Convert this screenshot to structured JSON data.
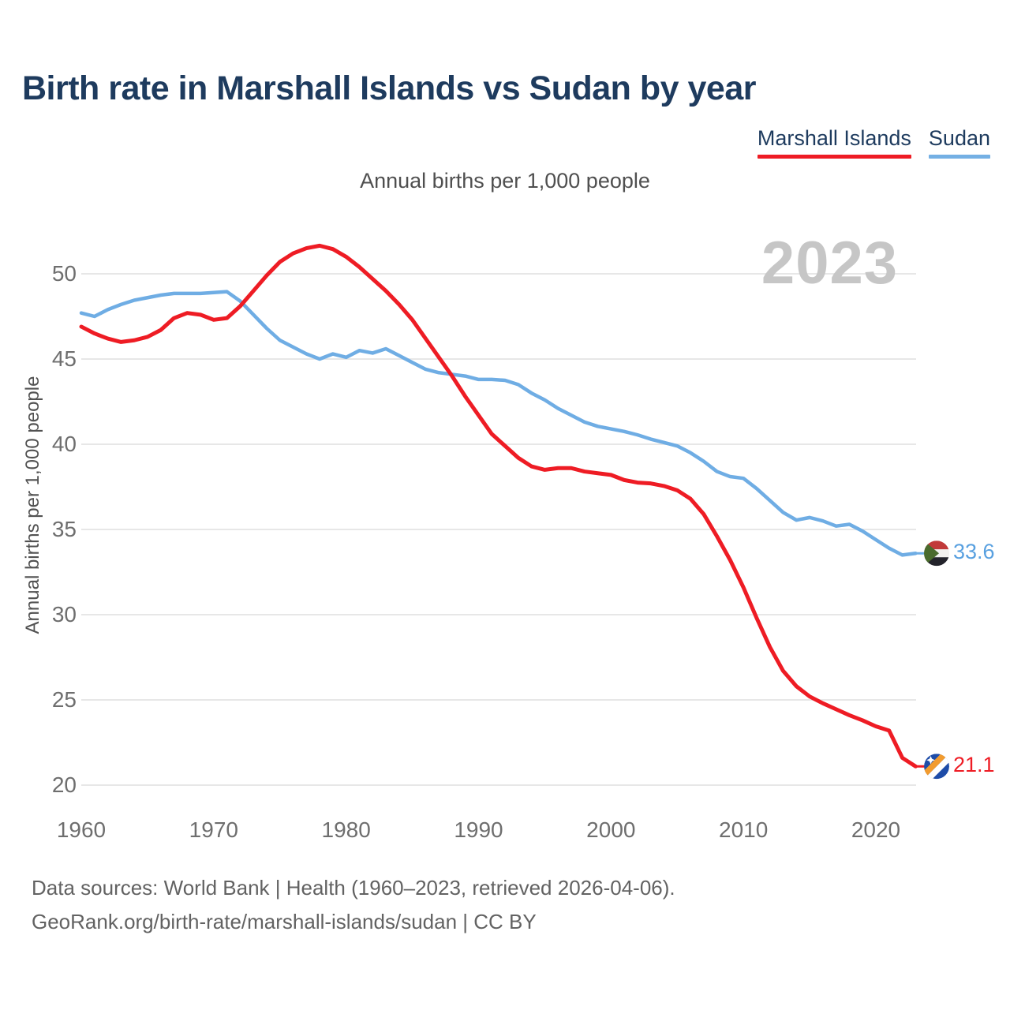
{
  "header": {
    "title": "Birth rate in Marshall Islands vs Sudan by year"
  },
  "legend": {
    "items": [
      {
        "label": "Marshall Islands",
        "color": "#ee1c24"
      },
      {
        "label": "Sudan",
        "color": "#74b0e4"
      }
    ]
  },
  "subtitle": "Annual births per 1,000 people",
  "watermark": "2023",
  "y_axis": {
    "title": "Annual births per 1,000 people",
    "ticks": [
      50,
      45,
      40,
      35,
      30,
      25,
      20
    ]
  },
  "x_axis": {
    "ticks": [
      1960,
      1970,
      1980,
      1990,
      2000,
      2010,
      2020
    ]
  },
  "end_labels": [
    {
      "series": "Sudan",
      "value": "33.6",
      "color": "#58a0e0",
      "flag": "sudan-flag"
    },
    {
      "series": "Marshall Islands",
      "value": "21.1",
      "color": "#ee1c24",
      "flag": "marshall-islands-flag"
    }
  ],
  "footer": {
    "line1": "Data sources: World Bank | Health (1960–2023, retrieved 2026-04-06).",
    "line2": "GeoRank.org/birth-rate/marshall-islands/sudan | CC BY"
  },
  "chart_data": {
    "type": "line",
    "title": "Birth rate in Marshall Islands vs Sudan by year",
    "ylabel": "Annual births per 1,000 people",
    "xlim": [
      1960,
      2023
    ],
    "ylim": [
      20,
      52
    ],
    "grid": "horizontal",
    "legend_position": "top-right",
    "x": [
      1960,
      1961,
      1962,
      1963,
      1964,
      1965,
      1966,
      1967,
      1968,
      1969,
      1970,
      1971,
      1972,
      1973,
      1974,
      1975,
      1976,
      1977,
      1978,
      1979,
      1980,
      1981,
      1982,
      1983,
      1984,
      1985,
      1986,
      1987,
      1988,
      1989,
      1990,
      1991,
      1992,
      1993,
      1994,
      1995,
      1996,
      1997,
      1998,
      1999,
      2000,
      2001,
      2002,
      2003,
      2004,
      2005,
      2006,
      2007,
      2008,
      2009,
      2010,
      2011,
      2012,
      2013,
      2014,
      2015,
      2016,
      2017,
      2018,
      2019,
      2020,
      2021,
      2022,
      2023
    ],
    "series": [
      {
        "name": "Marshall Islands",
        "color": "#ee1c24",
        "end_label": "21.1",
        "values": [
          46.9,
          46.5,
          46.2,
          46.0,
          46.1,
          46.3,
          46.7,
          47.4,
          47.7,
          47.6,
          47.3,
          47.4,
          48.1,
          49.0,
          49.9,
          50.7,
          51.2,
          51.5,
          51.65,
          51.45,
          51.0,
          50.4,
          49.7,
          49.0,
          48.2,
          47.3,
          46.2,
          45.1,
          44.0,
          42.8,
          41.7,
          40.6,
          39.9,
          39.2,
          38.7,
          38.5,
          38.6,
          38.6,
          38.4,
          38.3,
          38.2,
          37.9,
          37.75,
          37.7,
          37.55,
          37.3,
          36.8,
          35.9,
          34.6,
          33.2,
          31.6,
          29.8,
          28.1,
          26.7,
          25.8,
          25.2,
          24.8,
          24.45,
          24.1,
          23.8,
          23.45,
          23.2,
          21.6,
          21.1
        ]
      },
      {
        "name": "Sudan",
        "color": "#6fade4",
        "end_label": "33.6",
        "values": [
          47.7,
          47.5,
          47.9,
          48.2,
          48.45,
          48.6,
          48.75,
          48.85,
          48.85,
          48.85,
          48.9,
          48.95,
          48.4,
          47.6,
          46.8,
          46.1,
          45.7,
          45.3,
          45.0,
          45.3,
          45.1,
          45.5,
          45.35,
          45.6,
          45.2,
          44.8,
          44.4,
          44.2,
          44.1,
          44.0,
          43.8,
          43.8,
          43.75,
          43.5,
          43.0,
          42.6,
          42.1,
          41.7,
          41.3,
          41.05,
          40.9,
          40.75,
          40.55,
          40.3,
          40.1,
          39.9,
          39.5,
          39.0,
          38.4,
          38.1,
          38.0,
          37.4,
          36.7,
          36.0,
          35.55,
          35.7,
          35.5,
          35.2,
          35.3,
          34.9,
          34.4,
          33.9,
          33.5,
          33.6
        ]
      }
    ]
  }
}
